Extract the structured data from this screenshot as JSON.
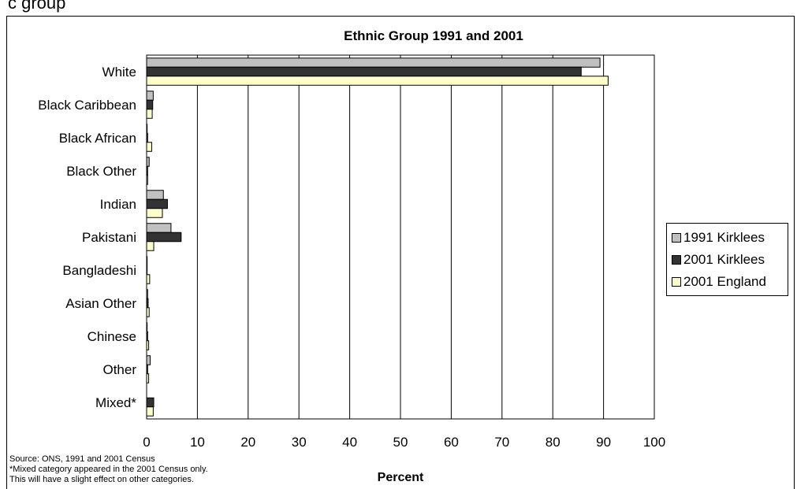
{
  "header_fragment": "c group",
  "chart_data": {
    "type": "bar",
    "orientation": "horizontal",
    "title": "Ethnic Group 1991 and 2001",
    "xlabel": "Percent",
    "ylabel": "",
    "xlim": [
      0,
      100
    ],
    "x_ticks": [
      "0",
      "10",
      "20",
      "30",
      "40",
      "50",
      "60",
      "70",
      "80",
      "90",
      "100"
    ],
    "grid": "vertical",
    "legend_position": "right",
    "categories": [
      "White",
      "Black Caribbean",
      "Black African",
      "Black Other",
      "Indian",
      "Pakistani",
      "Bangladeshi",
      "Asian Other",
      "Chinese",
      "Other",
      "Mixed*"
    ],
    "series": [
      {
        "name": "1991 Kirklees",
        "color": "#c0c0c0",
        "values": [
          89.3,
          1.3,
          0.1,
          0.5,
          3.3,
          4.8,
          0.1,
          0.2,
          0.1,
          0.7,
          0
        ]
      },
      {
        "name": "2001 Kirklees",
        "color": "#333333",
        "values": [
          85.6,
          1.2,
          0.2,
          0.2,
          4.1,
          6.8,
          0.1,
          0.3,
          0.2,
          0.2,
          1.4
        ]
      },
      {
        "name": "2001 England",
        "color": "#ffffcc",
        "values": [
          90.9,
          1.1,
          1.0,
          0.2,
          3.1,
          1.4,
          0.6,
          0.5,
          0.4,
          0.4,
          1.3
        ]
      }
    ]
  },
  "notes": [
    "Source: ONS, 1991 and 2001 Census",
    "*Mixed category appeared in the 2001 Census only.",
    "This will have a slight effect on other categories."
  ]
}
